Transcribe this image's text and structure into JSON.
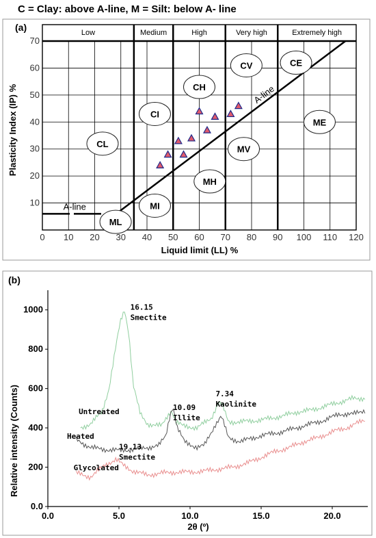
{
  "chart_data": [
    {
      "type": "scatter",
      "panel_label": "(a)",
      "title": "C = Clay: above A-line,   M = Silt: below A- line",
      "xlabel": "Liquid limit (LL) %",
      "ylabel": "Plasticity Index (IP) %",
      "xlim": [
        0,
        120
      ],
      "ylim": [
        0,
        70
      ],
      "xticks": [
        "0",
        "10",
        "20",
        "30",
        "40",
        "50",
        "60",
        "70",
        "80",
        "90",
        "100",
        "110",
        "120"
      ],
      "yticks": [
        "10",
        "20",
        "30",
        "40",
        "50",
        "60",
        "70"
      ],
      "grid": true,
      "plasticity_bands": [
        "Low",
        "Medium",
        "High",
        "Very high",
        "Extremely high"
      ],
      "band_boundaries": [
        35,
        50,
        70,
        90
      ],
      "a_line": {
        "label": "A-line",
        "slope": 0.73,
        "intercept_ll": 20,
        "low_plateau": 6
      },
      "zones": [
        {
          "label": "CL",
          "x": 23,
          "y": 32
        },
        {
          "label": "ML",
          "x": 28,
          "y": 3
        },
        {
          "label": "CI",
          "x": 43,
          "y": 43
        },
        {
          "label": "MI",
          "x": 43,
          "y": 9
        },
        {
          "label": "CH",
          "x": 60,
          "y": 53
        },
        {
          "label": "MH",
          "x": 64,
          "y": 18
        },
        {
          "label": "CV",
          "x": 78,
          "y": 61
        },
        {
          "label": "MV",
          "x": 77,
          "y": 30
        },
        {
          "label": "CE",
          "x": 97,
          "y": 62
        },
        {
          "label": "ME",
          "x": 106,
          "y": 40
        }
      ],
      "points": [
        {
          "x": 45,
          "y": 24
        },
        {
          "x": 48,
          "y": 28
        },
        {
          "x": 52,
          "y": 33
        },
        {
          "x": 54,
          "y": 28
        },
        {
          "x": 57,
          "y": 34
        },
        {
          "x": 60,
          "y": 44
        },
        {
          "x": 63,
          "y": 37
        },
        {
          "x": 66,
          "y": 42
        },
        {
          "x": 72,
          "y": 43
        },
        {
          "x": 75,
          "y": 46
        }
      ],
      "colors": {
        "marker_fill": "#e05a6b",
        "marker_stroke": "#1e2a8a",
        "grid": "#000000"
      }
    },
    {
      "type": "line",
      "panel_label": "(b)",
      "xlabel": "2θ (º)",
      "ylabel": "Relative intensity (Counts)",
      "xlim": [
        0,
        22.5
      ],
      "ylim": [
        0,
        1100
      ],
      "xticks": [
        "0.0",
        "5.0",
        "10.0",
        "15.0",
        "20.0"
      ],
      "yticks": [
        "0.0",
        "200",
        "400",
        "600",
        "800",
        "1000"
      ],
      "series": [
        {
          "name": "Untreated",
          "color": "#8fce9e",
          "x": [
            2.3,
            3.0,
            3.8,
            4.3,
            4.8,
            5.1,
            5.4,
            5.7,
            6.0,
            6.5,
            7.0,
            8.0,
            8.5,
            8.7,
            9.0,
            9.5,
            10.5,
            11.5,
            12.0,
            12.3,
            12.7,
            13.5,
            15.0,
            16.5,
            17.5,
            18.5,
            19.5,
            20.5,
            21.5,
            22.3
          ],
          "y": [
            400,
            420,
            480,
            600,
            820,
            940,
            1000,
            880,
            620,
            470,
            420,
            410,
            470,
            490,
            430,
            410,
            400,
            450,
            530,
            510,
            430,
            430,
            440,
            460,
            480,
            490,
            510,
            530,
            550,
            550
          ]
        },
        {
          "name": "Heated",
          "color": "#555555",
          "x": [
            2.0,
            3.0,
            4.0,
            5.0,
            6.0,
            7.0,
            7.8,
            8.3,
            8.6,
            8.8,
            9.1,
            9.6,
            10.5,
            11.0,
            11.8,
            12.2,
            12.7,
            13.5,
            15.0,
            16.5,
            17.5,
            18.5,
            19.5,
            20.5,
            21.5,
            22.3
          ],
          "y": [
            340,
            300,
            290,
            285,
            290,
            300,
            310,
            360,
            470,
            510,
            400,
            330,
            300,
            310,
            420,
            460,
            350,
            330,
            360,
            380,
            400,
            420,
            440,
            470,
            470,
            490
          ]
        },
        {
          "name": "Glycolated",
          "color": "#e98e8e",
          "x": [
            2.0,
            2.5,
            3.0,
            4.0,
            4.8,
            5.3,
            6.0,
            7.0,
            8.0,
            9.0,
            10.0,
            11.0,
            12.0,
            13.0,
            14.0,
            15.0,
            16.0,
            17.0,
            18.0,
            19.0,
            20.0,
            21.0,
            22.3
          ],
          "y": [
            170,
            160,
            150,
            210,
            240,
            210,
            180,
            160,
            170,
            175,
            175,
            180,
            190,
            200,
            220,
            250,
            280,
            300,
            330,
            350,
            380,
            400,
            440
          ]
        }
      ],
      "series_labels": [
        {
          "text": "Untreated",
          "x": 3.6,
          "y": 470
        },
        {
          "text": "Heated",
          "x": 2.3,
          "y": 345
        },
        {
          "text": "Glycolated",
          "x": 3.4,
          "y": 185
        }
      ],
      "annotations": [
        {
          "line1": "16.15",
          "line2": "Smectite",
          "x": 5.8,
          "y": 1000
        },
        {
          "line1": "10.09",
          "line2": "Illite",
          "x": 8.8,
          "y": 490
        },
        {
          "line1": "7.34",
          "line2": "Kaolinite",
          "x": 11.8,
          "y": 560
        },
        {
          "line1": "19.13",
          "line2": "Smectite",
          "x": 5.0,
          "y": 290
        }
      ]
    }
  ]
}
